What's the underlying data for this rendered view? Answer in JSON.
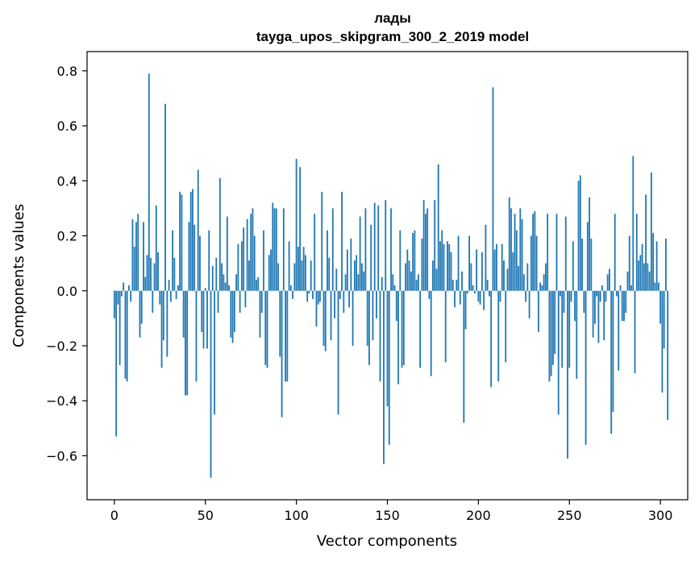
{
  "chart_data": {
    "type": "bar",
    "title": "лады",
    "subtitle": "tayga_upos_skipgram_300_2_2019 model",
    "xlabel": "Vector components",
    "ylabel": "Components values",
    "xlim": [
      -15,
      315
    ],
    "ylim": [
      -0.76,
      0.87
    ],
    "xticks": [
      0,
      50,
      100,
      150,
      200,
      250,
      300
    ],
    "xtick_labels": [
      "0",
      "50",
      "100",
      "150",
      "200",
      "250",
      "300"
    ],
    "yticks": [
      -0.6,
      -0.4,
      -0.2,
      0.0,
      0.2,
      0.4,
      0.6,
      0.8
    ],
    "ytick_labels": [
      "−0.6",
      "−0.4",
      "−0.2",
      "0.0",
      "0.2",
      "0.4",
      "0.6",
      "0.8"
    ],
    "grid": false,
    "bar_color": "#1f77b4",
    "x_start": 0,
    "values": [
      -0.1,
      -0.53,
      -0.05,
      -0.27,
      -0.02,
      0.03,
      -0.32,
      -0.33,
      0.02,
      -0.04,
      0.26,
      0.16,
      0.25,
      0.28,
      -0.17,
      -0.12,
      0.25,
      0.05,
      0.13,
      0.79,
      0.12,
      -0.08,
      0.1,
      0.31,
      0.14,
      -0.05,
      -0.28,
      -0.18,
      0.68,
      -0.24,
      0.04,
      -0.04,
      0.22,
      0.12,
      -0.03,
      0.02,
      0.36,
      0.35,
      -0.17,
      -0.38,
      -0.38,
      0.25,
      0.36,
      0.37,
      0.24,
      -0.33,
      0.44,
      0.2,
      -0.15,
      -0.21,
      0.01,
      -0.21,
      0.22,
      -0.68,
      0.09,
      -0.45,
      0.12,
      -0.08,
      0.41,
      0.1,
      0.06,
      0.03,
      0.27,
      0.02,
      -0.17,
      -0.19,
      -0.15,
      0.06,
      0.17,
      -0.08,
      0.18,
      0.23,
      -0.06,
      0.26,
      0.11,
      0.28,
      0.3,
      0.2,
      0.04,
      0.05,
      -0.17,
      -0.08,
      0.22,
      -0.27,
      -0.28,
      0.13,
      0.15,
      0.32,
      0.3,
      0.3,
      0.1,
      -0.24,
      -0.46,
      0.3,
      -0.33,
      -0.33,
      0.18,
      0.02,
      -0.03,
      0.1,
      0.48,
      0.16,
      0.45,
      0.11,
      0.16,
      0.13,
      -0.04,
      -0.01,
      0.11,
      -0.03,
      0.28,
      -0.13,
      -0.05,
      -0.04,
      0.36,
      -0.2,
      -0.22,
      0.22,
      0.12,
      -0.18,
      0.3,
      -0.1,
      0.08,
      -0.45,
      -0.03,
      0.36,
      -0.08,
      0.06,
      0.15,
      -0.06,
      0.19,
      -0.2,
      0.11,
      0.13,
      0.06,
      0.27,
      0.1,
      0.07,
      0.3,
      -0.2,
      -0.27,
      0.24,
      -0.18,
      0.32,
      -0.1,
      0.31,
      -0.33,
      0.05,
      -0.63,
      0.33,
      -0.42,
      -0.56,
      0.3,
      0.06,
      0.02,
      -0.11,
      -0.34,
      0.22,
      -0.28,
      -0.27,
      0.1,
      0.15,
      0.11,
      0.07,
      0.21,
      0.22,
      0.04,
      0.06,
      -0.28,
      0.19,
      0.33,
      0.28,
      0.3,
      -0.03,
      -0.31,
      0.11,
      0.33,
      0.08,
      0.46,
      0.18,
      0.22,
      0.17,
      -0.26,
      0.18,
      0.17,
      0.14,
      0.04,
      -0.06,
      0.04,
      0.2,
      -0.05,
      0.07,
      -0.48,
      -0.14,
      -0.01,
      0.2,
      0.1,
      0.02,
      -0.01,
      0.15,
      -0.04,
      -0.05,
      0.14,
      -0.07,
      0.24,
      0.04,
      -0.02,
      -0.35,
      0.74,
      0.15,
      0.17,
      -0.33,
      -0.04,
      0.17,
      0.11,
      -0.26,
      0.08,
      0.34,
      0.3,
      0.14,
      0.28,
      0.22,
      0.09,
      0.3,
      0.26,
      0.06,
      -0.04,
      0.1,
      -0.1,
      0.2,
      0.28,
      0.29,
      0.2,
      -0.15,
      0.03,
      0.02,
      0.06,
      0.1,
      0.28,
      -0.33,
      -0.31,
      -0.27,
      -0.23,
      0.28,
      -0.45,
      -0.02,
      -0.28,
      -0.08,
      0.27,
      -0.61,
      -0.28,
      -0.04,
      0.18,
      -0.11,
      -0.32,
      0.4,
      0.42,
      0.19,
      -0.08,
      -0.56,
      0.25,
      0.34,
      0.19,
      -0.17,
      -0.12,
      -0.02,
      -0.19,
      -0.04,
      0.02,
      -0.18,
      -0.04,
      0.06,
      0.08,
      -0.52,
      -0.44,
      0.28,
      -0.02,
      -0.29,
      0.02,
      -0.11,
      -0.11,
      -0.08,
      0.07,
      0.2,
      0.02,
      0.49,
      -0.3,
      0.28,
      0.11,
      0.13,
      0.17,
      0.1,
      0.35,
      0.1,
      0.07,
      0.43,
      0.21,
      0.03,
      0.18,
      0.03,
      -0.12,
      -0.37,
      -0.21,
      0.19,
      -0.47
    ]
  }
}
